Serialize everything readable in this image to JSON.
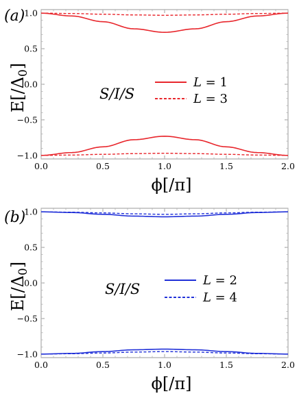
{
  "chart_data": [
    {
      "type": "line",
      "panel_label": "(a)",
      "annotation": "S/I/S",
      "xlabel": "ϕ[/π]",
      "ylabel": "E[/Δ0]",
      "xlim": [
        0,
        2
      ],
      "ylim": [
        -1.05,
        1.05
      ],
      "xticks": [
        0.0,
        0.5,
        1.0,
        1.5,
        2.0
      ],
      "xtick_labels": [
        "0.0",
        "0.5",
        "1.0",
        "1.5",
        "2.0"
      ],
      "yticks": [
        -1.0,
        -0.5,
        0.0,
        0.5,
        1.0
      ],
      "ytick_labels": [
        "−1.0",
        "−0.5",
        "0.0",
        "0.5",
        "1.0"
      ],
      "legend_position": "center-right",
      "series": [
        {
          "name": "L = 1",
          "color": "#e8252b",
          "dash": "solid",
          "x": [
            0.0,
            0.25,
            0.5,
            0.75,
            1.0,
            1.25,
            1.5,
            1.75,
            2.0
          ],
          "y": [
            1.0,
            0.96,
            0.88,
            0.78,
            0.73,
            0.78,
            0.88,
            0.96,
            1.0
          ],
          "mirror": true
        },
        {
          "name": "L = 3",
          "color": "#e8252b",
          "dash": "dashed",
          "x": [
            0.0,
            0.25,
            0.5,
            0.75,
            1.0,
            1.25,
            1.5,
            1.75,
            2.0
          ],
          "y": [
            1.0,
            0.995,
            0.985,
            0.975,
            0.97,
            0.975,
            0.985,
            0.995,
            1.0
          ],
          "mirror": true
        }
      ]
    },
    {
      "type": "line",
      "panel_label": "(b)",
      "annotation": "S/I/S",
      "xlabel": "ϕ[/π]",
      "ylabel": "E[/Δ0]",
      "xlim": [
        0,
        2
      ],
      "ylim": [
        -1.05,
        1.05
      ],
      "xticks": [
        0.0,
        0.5,
        1.0,
        1.5,
        2.0
      ],
      "xtick_labels": [
        "0.0",
        "0.5",
        "1.0",
        "1.5",
        "2.0"
      ],
      "yticks": [
        -1.0,
        -0.5,
        0.0,
        0.5,
        1.0
      ],
      "ytick_labels": [
        "−1.0",
        "−0.5",
        "0.0",
        "0.5",
        "1.0"
      ],
      "legend_position": "center-right",
      "series": [
        {
          "name": "L = 2",
          "color": "#1f2fd8",
          "dash": "solid",
          "x": [
            0.0,
            0.25,
            0.5,
            0.75,
            1.0,
            1.25,
            1.5,
            1.75,
            2.0
          ],
          "y": [
            1.0,
            0.99,
            0.965,
            0.94,
            0.93,
            0.94,
            0.965,
            0.99,
            1.0
          ],
          "mirror": true
        },
        {
          "name": "L = 4",
          "color": "#1f2fd8",
          "dash": "dashed",
          "x": [
            0.0,
            0.25,
            0.5,
            0.75,
            1.0,
            1.25,
            1.5,
            1.75,
            2.0
          ],
          "y": [
            1.0,
            0.995,
            0.985,
            0.972,
            0.965,
            0.972,
            0.985,
            0.995,
            1.0
          ],
          "mirror": true
        }
      ]
    }
  ]
}
